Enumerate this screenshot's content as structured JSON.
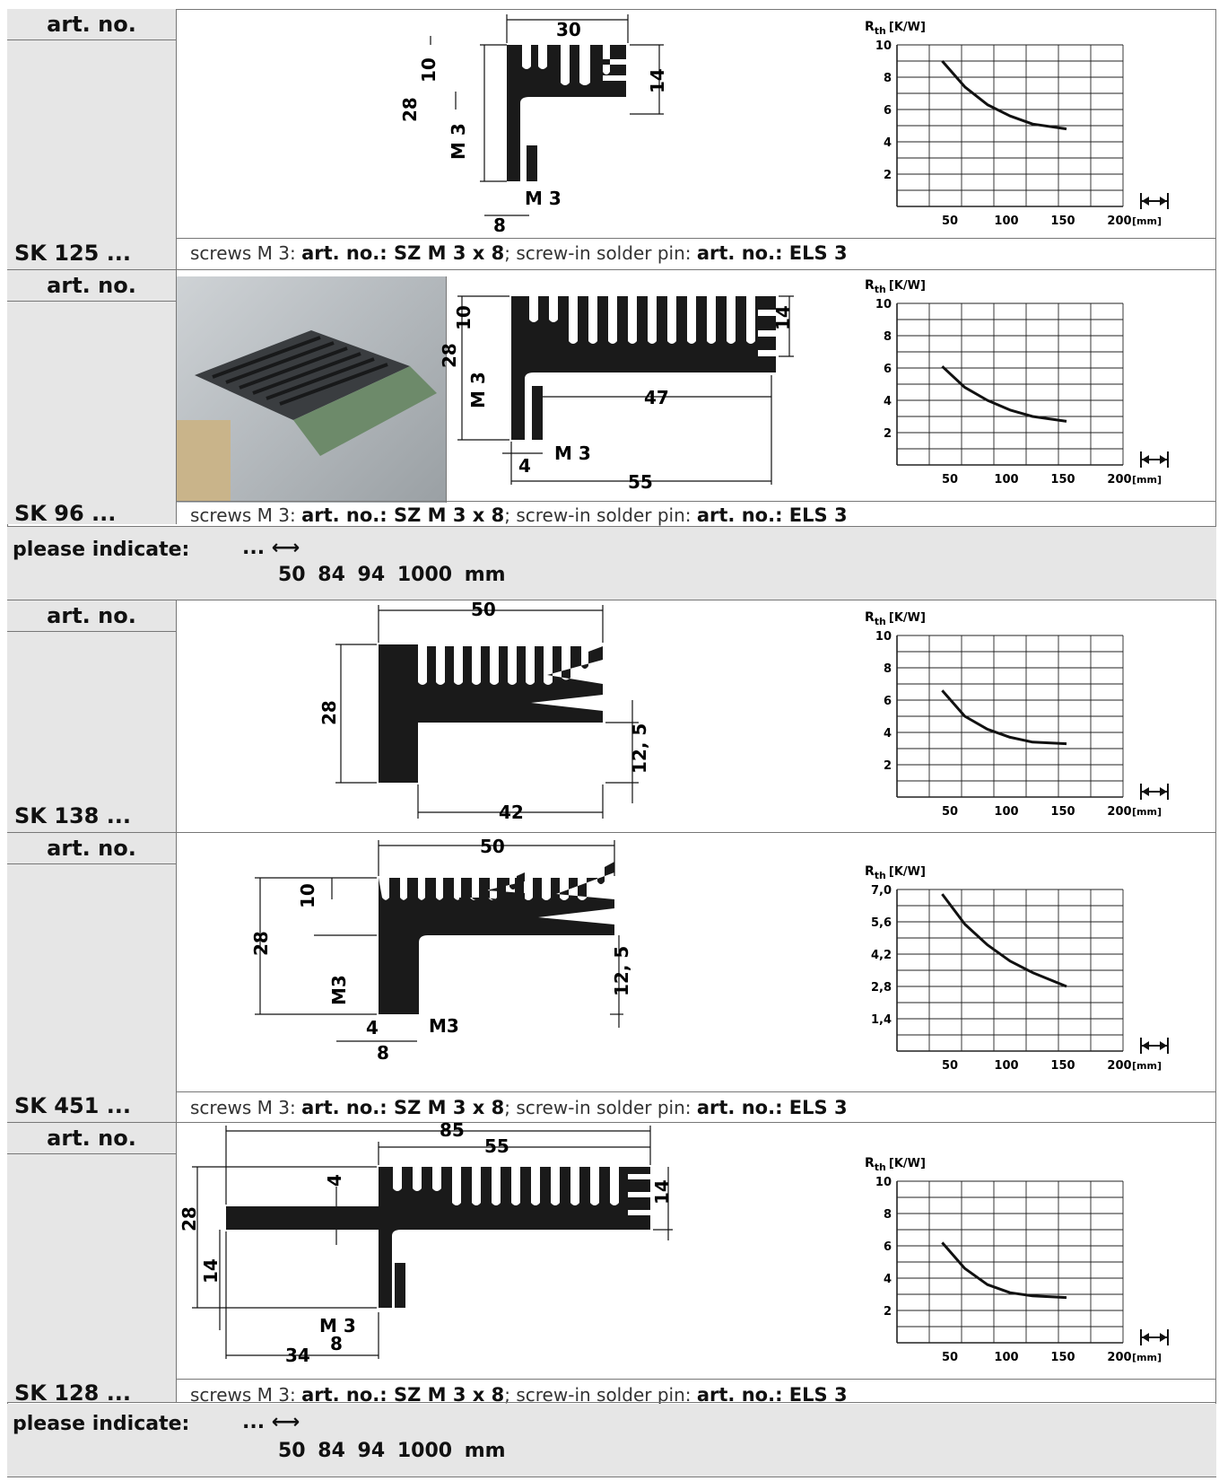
{
  "labels": {
    "art_no": "art. no.",
    "please_indicate": "please indicate:",
    "ellipsis": "...",
    "lengths": "50  84  94  1000 mm",
    "screws_prefix": "screws M 3:",
    "screws_art": "art. no.: SZ M 3 x 8",
    "screws_mid": "; screw-in solder pin:",
    "screws_pin": "art. no.: ELS 3"
  },
  "sections": [
    {
      "name": "SK 125 ...",
      "dims": [
        "30",
        "10",
        "14",
        "28",
        "M 3",
        "M 3",
        "8"
      ]
    },
    {
      "name": "SK 96 ...",
      "dims": [
        "10",
        "14",
        "28",
        "M 3",
        "47",
        "4",
        "M 3",
        "55"
      ]
    },
    {
      "name": "SK 138 ...",
      "dims": [
        "50",
        "28",
        "12, 5",
        "42"
      ]
    },
    {
      "name": "SK 451 ...",
      "dims": [
        "50",
        "10",
        "28",
        "M3",
        "12, 5",
        "4",
        "M3",
        "8"
      ]
    },
    {
      "name": "SK 128 ...",
      "dims": [
        "85",
        "55",
        "4",
        "14",
        "28",
        "14",
        "M 3",
        "8",
        "34"
      ]
    }
  ],
  "chart_data": [
    {
      "type": "line",
      "ylabel": "R",
      "ysub": "th",
      "yunit": "[K/W]",
      "xunit": "[mm]",
      "xticks": [
        50,
        100,
        150,
        200
      ],
      "yticks": [
        "2",
        "4",
        "6",
        "8",
        "10"
      ],
      "ylim": [
        0,
        10
      ],
      "xlim": [
        0,
        200
      ],
      "x": [
        40,
        60,
        80,
        100,
        120,
        150
      ],
      "y": [
        9.0,
        7.4,
        6.3,
        5.6,
        5.1,
        4.8
      ]
    },
    {
      "type": "line",
      "ylabel": "R",
      "ysub": "th",
      "yunit": "[K/W]",
      "xunit": "[mm]",
      "xticks": [
        50,
        100,
        150,
        200
      ],
      "yticks": [
        "2",
        "4",
        "6",
        "8",
        "10"
      ],
      "ylim": [
        0,
        10
      ],
      "xlim": [
        0,
        200
      ],
      "x": [
        40,
        60,
        80,
        100,
        120,
        150
      ],
      "y": [
        6.1,
        4.8,
        4.0,
        3.4,
        3.0,
        2.7
      ]
    },
    {
      "type": "line",
      "ylabel": "R",
      "ysub": "th",
      "yunit": "[K/W]",
      "xunit": "[mm]",
      "xticks": [
        50,
        100,
        150,
        200
      ],
      "yticks": [
        "2",
        "4",
        "6",
        "8",
        "10"
      ],
      "ylim": [
        0,
        10
      ],
      "xlim": [
        0,
        200
      ],
      "x": [
        40,
        60,
        80,
        100,
        120,
        150
      ],
      "y": [
        6.6,
        5.0,
        4.2,
        3.7,
        3.4,
        3.3
      ]
    },
    {
      "type": "line",
      "ylabel": "R",
      "ysub": "th",
      "yunit": "[K/W]",
      "xunit": "[mm]",
      "xticks": [
        50,
        100,
        150,
        200
      ],
      "yticks": [
        "1,4",
        "2,8",
        "4,2",
        "5,6",
        "7,0"
      ],
      "ylim": [
        0,
        7
      ],
      "xlim": [
        0,
        200
      ],
      "x": [
        40,
        60,
        80,
        100,
        120,
        150
      ],
      "y": [
        6.8,
        5.5,
        4.6,
        3.9,
        3.4,
        2.8
      ]
    },
    {
      "type": "line",
      "ylabel": "R",
      "ysub": "th",
      "yunit": "[K/W]",
      "xunit": "[mm]",
      "xticks": [
        50,
        100,
        150,
        200
      ],
      "yticks": [
        "2",
        "4",
        "6",
        "8",
        "10"
      ],
      "ylim": [
        0,
        10
      ],
      "xlim": [
        0,
        200
      ],
      "x": [
        40,
        60,
        80,
        100,
        120,
        150
      ],
      "y": [
        6.2,
        4.6,
        3.6,
        3.1,
        2.9,
        2.8
      ]
    }
  ]
}
